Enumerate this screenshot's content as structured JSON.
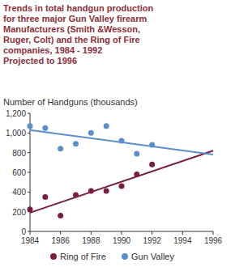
{
  "chart_data": {
    "type": "scatter",
    "title": "Trends in total handgun production\nfor three major Gun Valley firearm\nManufacturers (Smith &Wesson,\nRuger, Colt) and the Ring of Fire\ncompanies, 1984 - 1992\nProjected to 1996",
    "y_label": "Number of Handguns (thousands)",
    "xlim": [
      1984,
      1996
    ],
    "xticks": [
      1984,
      1986,
      1988,
      1990,
      1992,
      1994,
      1996
    ],
    "ylim": [
      0,
      1200
    ],
    "yticks": [
      0,
      200,
      400,
      600,
      800,
      {
        "value": 1000,
        "label": "1,000"
      },
      {
        "value": 1200,
        "label": "1,200"
      }
    ],
    "grid": false,
    "legend": "bottom",
    "series": [
      {
        "name": "Ring of Fire",
        "color": "#7a1f3d",
        "marker": "circle",
        "x": [
          1984,
          1985,
          1986,
          1987,
          1988,
          1989,
          1990,
          1991,
          1992
        ],
        "values": [
          225,
          350,
          160,
          370,
          410,
          410,
          460,
          580,
          680
        ],
        "trend": {
          "x": [
            1984,
            1996
          ],
          "values": [
            190,
            820
          ]
        }
      },
      {
        "name": "Gun Valley",
        "color": "#5b8fc7",
        "marker": "circle",
        "x": [
          1984,
          1985,
          1986,
          1987,
          1988,
          1989,
          1990,
          1991,
          1992
        ],
        "values": [
          1070,
          1050,
          840,
          890,
          1000,
          1070,
          920,
          790,
          880
        ],
        "trend": {
          "x": [
            1984,
            1996
          ],
          "values": [
            1030,
            780
          ]
        }
      }
    ]
  }
}
